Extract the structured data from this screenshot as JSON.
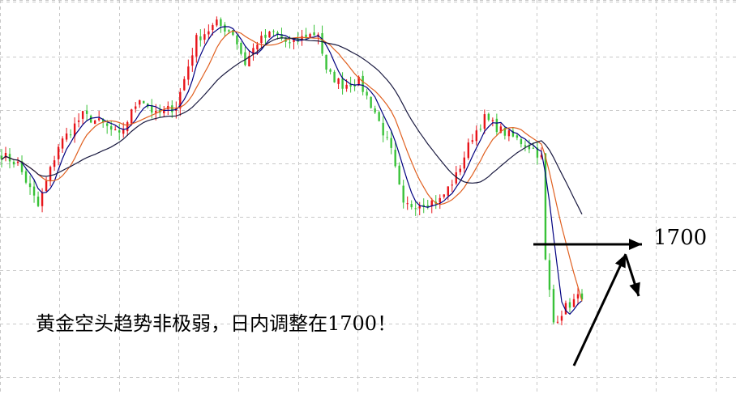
{
  "chart_data": {
    "type": "candlestick",
    "title": "",
    "headline": "黄金空头趋势非极弱，日内调整在1700！",
    "target_label": "1700",
    "ylim": [
      1675,
      1795
    ],
    "colors": {
      "up": "#e8141a",
      "down": "#39c239",
      "ma_short": "#000080",
      "ma_mid": "#e06020",
      "ma_long": "#1a1a40",
      "grid": "#c8c8c8"
    },
    "anchors": [
      {
        "i": 0,
        "p": 1749
      },
      {
        "i": 4,
        "p": 1746
      },
      {
        "i": 9,
        "p": 1732
      },
      {
        "i": 14,
        "p": 1752
      },
      {
        "i": 20,
        "p": 1762
      },
      {
        "i": 25,
        "p": 1759
      },
      {
        "i": 29,
        "p": 1755
      },
      {
        "i": 34,
        "p": 1768
      },
      {
        "i": 38,
        "p": 1762
      },
      {
        "i": 43,
        "p": 1765
      },
      {
        "i": 48,
        "p": 1787
      },
      {
        "i": 53,
        "p": 1792
      },
      {
        "i": 57,
        "p": 1789
      },
      {
        "i": 60,
        "p": 1779
      },
      {
        "i": 63,
        "p": 1786
      },
      {
        "i": 67,
        "p": 1789
      },
      {
        "i": 71,
        "p": 1785
      },
      {
        "i": 75,
        "p": 1788
      },
      {
        "i": 78,
        "p": 1789
      },
      {
        "i": 80,
        "p": 1776
      },
      {
        "i": 84,
        "p": 1772
      },
      {
        "i": 88,
        "p": 1773
      },
      {
        "i": 92,
        "p": 1763
      },
      {
        "i": 96,
        "p": 1750
      },
      {
        "i": 99,
        "p": 1732
      },
      {
        "i": 103,
        "p": 1733
      },
      {
        "i": 108,
        "p": 1734
      },
      {
        "i": 112,
        "p": 1742
      },
      {
        "i": 116,
        "p": 1755
      },
      {
        "i": 119,
        "p": 1761
      },
      {
        "i": 123,
        "p": 1757
      },
      {
        "i": 127,
        "p": 1754
      },
      {
        "i": 131,
        "p": 1751
      },
      {
        "i": 133,
        "p": 1748
      },
      {
        "i": 134,
        "p": 1714
      },
      {
        "i": 136,
        "p": 1694
      },
      {
        "i": 139,
        "p": 1699
      },
      {
        "i": 143,
        "p": 1703
      }
    ],
    "n_candles": 144,
    "arrows": [
      {
        "name": "rebound-arrow",
        "from_price": 1688,
        "to_price": 1726,
        "kind": "up"
      },
      {
        "name": "target-arrow",
        "price": 1728,
        "kind": "right"
      },
      {
        "name": "dip-arrow",
        "from_price": 1726,
        "to_price": 1711,
        "kind": "down"
      }
    ]
  }
}
